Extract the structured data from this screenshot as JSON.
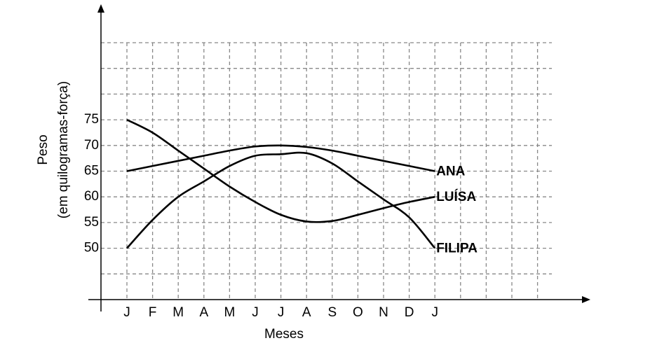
{
  "chart_data": {
    "type": "line",
    "ylabel": [
      "Peso",
      "(em quilogramas-força)"
    ],
    "xlabel": "Meses",
    "categories": [
      "J",
      "F",
      "M",
      "A",
      "M",
      "J",
      "J",
      "A",
      "S",
      "O",
      "N",
      "D",
      "J"
    ],
    "series": [
      {
        "name": "ANA",
        "color": "#000000",
        "values": [
          65,
          66,
          67,
          68,
          69,
          69.8,
          70,
          69.7,
          69,
          68,
          67,
          66,
          65
        ]
      },
      {
        "name": "LUÍSA",
        "color": "#000000",
        "values": [
          75,
          72.5,
          69,
          65.5,
          62,
          59,
          56.5,
          55.2,
          55.3,
          56.5,
          57.8,
          59,
          60
        ]
      },
      {
        "name": "FILIPA",
        "color": "#000000",
        "values": [
          50,
          55.5,
          60,
          63,
          66,
          68,
          68.3,
          68.5,
          66.5,
          63,
          59.5,
          56,
          50
        ]
      }
    ],
    "ylim": [
      40,
      90
    ],
    "yticks": [
      50,
      55,
      60,
      65,
      70,
      75
    ],
    "grid": true
  }
}
